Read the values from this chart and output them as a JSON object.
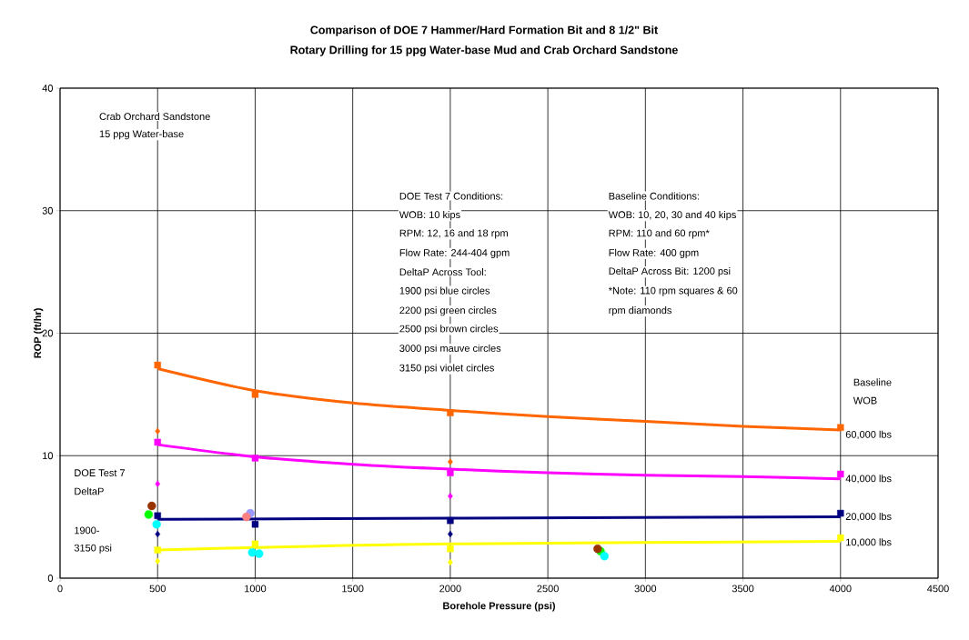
{
  "chart_data": {
    "type": "scatter",
    "title": "Comparison of DOE 7 Hammer/Hard Formation Bit and 8 1/2\" Bit",
    "subtitle": "Rotary Drilling for 15 ppg Water-base Mud and Crab Orchard Sandstone",
    "xlabel": "Borehole Pressure (psi)",
    "ylabel": "ROP (ft/hr)",
    "xlim": [
      0,
      4500
    ],
    "xticks": [
      0,
      500,
      1000,
      1500,
      2000,
      2500,
      3000,
      3500,
      4000,
      4500
    ],
    "ylim": [
      0,
      40
    ],
    "yticks": [
      0,
      10,
      20,
      30,
      40
    ],
    "grid": true,
    "series": [
      {
        "type": "line",
        "marker": "none",
        "color": "#ff6600",
        "x": [
          500,
          1000,
          1500,
          2000,
          2500,
          3000,
          3500,
          4000
        ],
        "values": [
          17.1,
          15.3,
          14.3,
          13.7,
          13.2,
          12.8,
          12.4,
          12.1
        ]
      },
      {
        "type": "line",
        "marker": "none",
        "color": "#ff00ff",
        "x": [
          500,
          1000,
          1500,
          2000,
          2500,
          3000,
          3500,
          4000
        ],
        "values": [
          10.9,
          9.9,
          9.3,
          8.9,
          8.6,
          8.4,
          8.3,
          8.1
        ]
      },
      {
        "type": "line",
        "marker": "none",
        "color": "#000080",
        "x": [
          500,
          2000,
          4000
        ],
        "values": [
          4.8,
          4.9,
          5.0
        ]
      },
      {
        "type": "line",
        "marker": "none",
        "color": "#ffff00",
        "x": [
          500,
          1000,
          2000,
          4000
        ],
        "values": [
          2.3,
          2.5,
          2.8,
          3.0
        ]
      },
      {
        "marker": "square",
        "color": "#ff6600",
        "x": [
          500,
          1000,
          2000,
          4000
        ],
        "values": [
          17.4,
          15.0,
          13.5,
          12.3
        ]
      },
      {
        "marker": "square",
        "color": "#ff00ff",
        "x": [
          500,
          1000,
          2000,
          4000
        ],
        "values": [
          11.1,
          9.8,
          8.6,
          8.5
        ]
      },
      {
        "marker": "square",
        "color": "#000080",
        "x": [
          500,
          1000,
          2000,
          4000
        ],
        "values": [
          5.1,
          4.4,
          4.7,
          5.3
        ]
      },
      {
        "marker": "square",
        "color": "#ffff00",
        "x": [
          500,
          1000,
          2000,
          4000
        ],
        "values": [
          2.3,
          2.8,
          2.4,
          3.3
        ]
      },
      {
        "marker": "diamond",
        "color": "#ff6600",
        "x": [
          500,
          2000
        ],
        "values": [
          12.0,
          9.5
        ]
      },
      {
        "marker": "diamond",
        "color": "#ff00ff",
        "x": [
          500,
          2000
        ],
        "values": [
          7.7,
          6.7
        ]
      },
      {
        "marker": "diamond",
        "color": "#000080",
        "x": [
          500,
          2000
        ],
        "values": [
          3.6,
          3.6
        ]
      },
      {
        "marker": "diamond",
        "color": "#ffff00",
        "x": [
          500,
          2000
        ],
        "values": [
          1.4,
          1.3
        ]
      },
      {
        "marker": "circle",
        "color": "#00ff00",
        "x": [
          454,
          2770
        ],
        "values": [
          5.2,
          2.2
        ]
      },
      {
        "marker": "circle",
        "color": "#993300",
        "x": [
          470,
          2755
        ],
        "values": [
          5.9,
          2.4
        ]
      },
      {
        "marker": "circle",
        "color": "#00ffff",
        "x": [
          495,
          985,
          1020,
          2790
        ],
        "values": [
          4.4,
          2.1,
          2.0,
          1.8
        ]
      },
      {
        "marker": "circle",
        "color": "#9999ff",
        "x": [
          975
        ],
        "values": [
          5.3
        ]
      },
      {
        "marker": "circle",
        "color": "#ff8080",
        "x": [
          955
        ],
        "values": [
          5.0
        ]
      }
    ],
    "annotations": [
      "Crab Orchard Sandstone",
      "15 ppg Water-base",
      "DOE Test 7 Conditions:",
      "WOB: 10 kips",
      "RPM: 12, 16 and 18 rpm",
      "Flow Rate: 244-404 gpm",
      "DeltaP Across Tool:",
      "1900 psi blue circles",
      "2200 psi green circles",
      "2500 psi brown circles",
      "3000 psi mauve circles",
      "3150 psi violet circles",
      "Baseline Conditions:",
      "WOB: 10, 20, 30 and 40 kips",
      "RPM: 110 and 60 rpm*",
      "Flow Rate: 400 gpm",
      "DeltaP Across Bit: 1200 psi",
      "*Note: 110 rpm squares & 60",
      "rpm diamonds",
      "Baseline",
      "WOB",
      "DOE  Test 7",
      "DeltaP",
      "1900-",
      "3150 psi",
      "60,000 lbs",
      "40,000 lbs",
      "20,000 lbs",
      "10,000 lbs"
    ]
  }
}
